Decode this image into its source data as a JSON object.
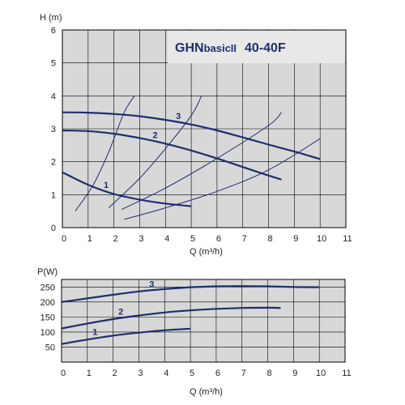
{
  "chart_data": [
    {
      "type": "line",
      "title": "GHNbasicII 40-40F",
      "title_parts": {
        "brand": "GHN",
        "model": "basicII",
        "size": "40-40F"
      },
      "xlabel": "Q (m³/h)",
      "ylabel": "H (m)",
      "xlim": [
        0,
        11
      ],
      "ylim": [
        0,
        6
      ],
      "xticks": [
        0,
        1,
        2,
        3,
        4,
        5,
        6,
        7,
        8,
        9,
        10,
        11
      ],
      "yticks": [
        0,
        1,
        2,
        3,
        4,
        5,
        6
      ],
      "grid": true,
      "series": [
        {
          "name": "1",
          "x": [
            0,
            1,
            2,
            3,
            4,
            5
          ],
          "y": [
            1.68,
            1.3,
            1.02,
            0.85,
            0.73,
            0.65
          ]
        },
        {
          "name": "2",
          "x": [
            0,
            1,
            2,
            3,
            4,
            5,
            6,
            7,
            8,
            8.5
          ],
          "y": [
            2.95,
            2.93,
            2.85,
            2.72,
            2.55,
            2.34,
            2.1,
            1.84,
            1.58,
            1.46
          ]
        },
        {
          "name": "3",
          "x": [
            0,
            1,
            2,
            3,
            4,
            5,
            6,
            7,
            8,
            9,
            10
          ],
          "y": [
            3.5,
            3.49,
            3.45,
            3.38,
            3.27,
            3.13,
            2.95,
            2.74,
            2.52,
            2.31,
            2.08
          ]
        }
      ],
      "system_curves": [
        {
          "x": [
            0.5,
            1.2,
            1.8,
            2.4,
            2.8
          ],
          "y": [
            0.5,
            1.3,
            2.3,
            3.5,
            4.0
          ]
        },
        {
          "x": [
            1.8,
            3.0,
            4.0,
            5.0,
            5.4
          ],
          "y": [
            0.6,
            1.5,
            2.4,
            3.4,
            4.0
          ]
        },
        {
          "x": [
            2.3,
            4.0,
            6.0,
            8.0,
            8.5
          ],
          "y": [
            0.55,
            1.2,
            2.1,
            3.1,
            3.5
          ]
        },
        {
          "x": [
            2.4,
            4.0,
            6.0,
            8.0,
            10.0
          ],
          "y": [
            0.25,
            0.6,
            1.1,
            1.75,
            2.7
          ]
        }
      ]
    },
    {
      "type": "line",
      "title": "",
      "xlabel": "Q (m³/h)",
      "ylabel": "P(W)",
      "xlim": [
        0,
        11
      ],
      "ylim": [
        0,
        275
      ],
      "xticks": [
        0,
        1,
        2,
        3,
        4,
        5,
        6,
        7,
        8,
        9,
        10,
        11
      ],
      "yticks": [
        50,
        100,
        150,
        200,
        250
      ],
      "grid": true,
      "series": [
        {
          "name": "1",
          "x": [
            0,
            1,
            2,
            3,
            4,
            5
          ],
          "y": [
            60,
            75,
            88,
            98,
            106,
            111
          ]
        },
        {
          "name": "2",
          "x": [
            0,
            1,
            2,
            3,
            4,
            5,
            6,
            7,
            8,
            8.5
          ],
          "y": [
            112,
            128,
            143,
            155,
            165,
            172,
            177,
            180,
            181,
            180
          ]
        },
        {
          "name": "3",
          "x": [
            0,
            1,
            2,
            3,
            4,
            5,
            6,
            7,
            8,
            9,
            10
          ],
          "y": [
            200,
            212,
            224,
            235,
            243,
            249,
            252,
            253,
            252,
            250,
            249
          ]
        }
      ]
    }
  ],
  "colors": {
    "curve": "#1f2f6e",
    "grid": "#000000",
    "plot_bg": "#d8d8d8",
    "title_box": "#e8e8e8"
  }
}
